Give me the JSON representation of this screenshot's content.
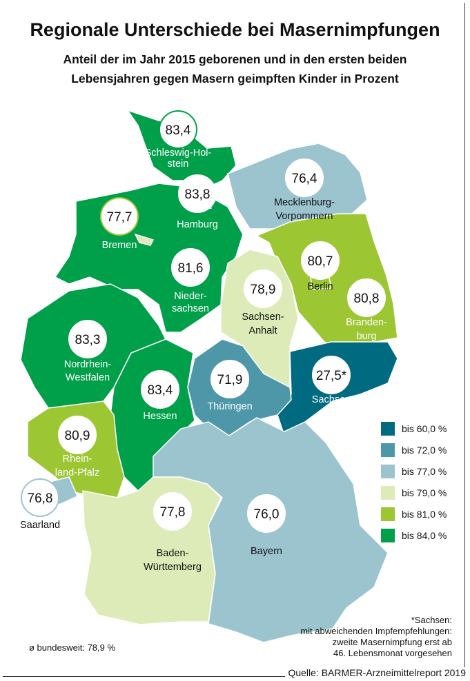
{
  "title": "Regionale Unterschiede bei Masernimpfungen",
  "subtitle_line1": "Anteil der im Jahr 2015 geborenen und in den ersten beiden",
  "subtitle_line2": "Lebensjahren gegen Masern geimpften Kinder in Prozent",
  "legend": [
    {
      "label": "bis 60,0 %",
      "color": "#006a80"
    },
    {
      "label": "bis 72,0 %",
      "color": "#4e97a9"
    },
    {
      "label": "bis 77,0 %",
      "color": "#9bc4cf"
    },
    {
      "label": "bis 79,0 %",
      "color": "#dcebb8"
    },
    {
      "label": "bis 81,0 %",
      "color": "#9dc633"
    },
    {
      "label": "bis 84,0 %",
      "color": "#00a04a"
    }
  ],
  "states": [
    {
      "name": "Schleswig-Holstein",
      "value": "83,4",
      "color": "#00a04a"
    },
    {
      "name": "Hamburg",
      "value": "83,8",
      "color": "#00a04a"
    },
    {
      "name": "Mecklenburg-Vorpommern",
      "value": "76,4",
      "color": "#9bc4cf"
    },
    {
      "name": "Bremen",
      "value": "77,7",
      "color": "#dcebb8"
    },
    {
      "name": "Niedersachsen",
      "value": "81,6",
      "color": "#00a04a"
    },
    {
      "name": "Berlin",
      "value": "80,7",
      "color": "#9dc633"
    },
    {
      "name": "Brandenburg",
      "value": "80,8",
      "color": "#9dc633"
    },
    {
      "name": "Sachsen-Anhalt",
      "value": "78,9",
      "color": "#dcebb8"
    },
    {
      "name": "Nordrhein-Westfalen",
      "value": "83,3",
      "color": "#00a04a"
    },
    {
      "name": "Hessen",
      "value": "83,4",
      "color": "#00a04a"
    },
    {
      "name": "Thüringen",
      "value": "71,9",
      "color": "#4e97a9"
    },
    {
      "name": "Sachsen",
      "value": "27,5*",
      "color": "#006a80"
    },
    {
      "name": "Rheinland-Pfalz",
      "value": "80,9",
      "color": "#9dc633"
    },
    {
      "name": "Saarland",
      "value": "76,8",
      "color": "#9bc4cf"
    },
    {
      "name": "Baden-Württemberg",
      "value": "77,8",
      "color": "#dcebb8"
    },
    {
      "name": "Bayern",
      "value": "76,0",
      "color": "#9bc4cf"
    }
  ],
  "note": [
    "*Sachsen:",
    "mit abweichenden Impfempfehlungen:",
    "zweite Masernimpfung erst ab",
    "46. Lebensmonat vorgesehen"
  ],
  "average": "ø bundesweit: 78,9 %",
  "source": "Quelle: BARMER-Arzneimittelreport 2019"
}
